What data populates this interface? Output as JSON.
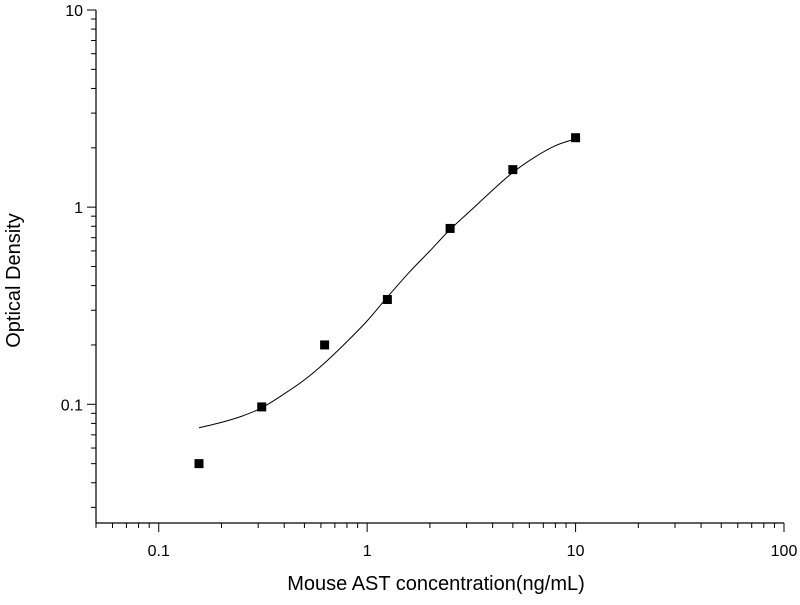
{
  "chart_data": {
    "type": "scatter",
    "title": "",
    "xlabel": "Mouse AST concentration(ng/mL)",
    "ylabel": "Optical Density",
    "x_scale": "log",
    "y_scale": "log",
    "xlim": [
      0.05,
      100
    ],
    "ylim": [
      0.025,
      10
    ],
    "x_ticks": [
      {
        "value": 0.1,
        "label": "0.1"
      },
      {
        "value": 1,
        "label": "1"
      },
      {
        "value": 10,
        "label": "10"
      },
      {
        "value": 100,
        "label": "100"
      }
    ],
    "y_ticks": [
      {
        "value": 0.1,
        "label": "0.1"
      },
      {
        "value": 1,
        "label": "1"
      },
      {
        "value": 10,
        "label": "10"
      }
    ],
    "grid": false,
    "legend": "none",
    "series": [
      {
        "kind": "points",
        "marker": "square",
        "color": "#000000",
        "x": [
          0.156,
          0.312,
          0.625,
          1.25,
          2.5,
          5,
          10
        ],
        "y": [
          0.05,
          0.097,
          0.2,
          0.34,
          0.78,
          1.55,
          2.25
        ]
      },
      {
        "kind": "fitted-curve",
        "color": "#000000",
        "x": [
          0.156,
          0.2,
          0.25,
          0.312,
          0.4,
          0.5,
          0.625,
          0.8,
          1.0,
          1.25,
          1.6,
          2.0,
          2.5,
          3.2,
          4.0,
          5.0,
          6.3,
          8.0,
          10
        ],
        "y": [
          0.076,
          0.081,
          0.087,
          0.096,
          0.113,
          0.133,
          0.162,
          0.208,
          0.265,
          0.35,
          0.47,
          0.6,
          0.77,
          0.98,
          1.22,
          1.5,
          1.78,
          2.05,
          2.22
        ]
      }
    ]
  }
}
